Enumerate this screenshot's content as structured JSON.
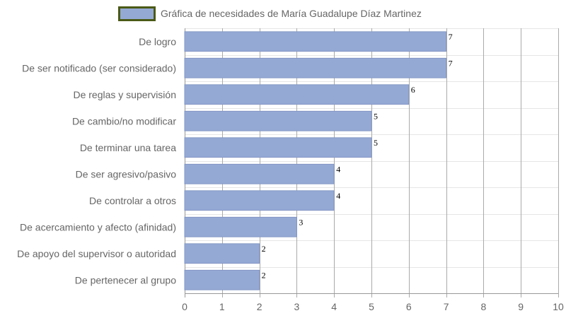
{
  "chart_data": {
    "type": "bar",
    "orientation": "horizontal",
    "categories": [
      "De logro",
      "De ser notificado (ser considerado)",
      "De reglas y supervisión",
      "De cambio/no modificar",
      "De terminar una tarea",
      "De ser agresivo/pasivo",
      "De controlar a otros",
      "De acercamiento y afecto (afinidad)",
      "De apoyo del supervisor o autoridad",
      "De pertenecer al grupo"
    ],
    "series": [
      {
        "name": "Gráfica de necesidades de María Guadalupe Díaz Martinez",
        "values": [
          7,
          7,
          6,
          5,
          5,
          4,
          4,
          3,
          2,
          2
        ],
        "color": "#95a9d5",
        "border_color": "#4a5a16"
      }
    ],
    "xlim": [
      0,
      10
    ],
    "x_ticks": [
      0,
      1,
      2,
      3,
      4,
      5,
      6,
      7,
      8,
      9,
      10
    ],
    "grid": true,
    "legend_position": "top",
    "show_data_labels": true
  }
}
